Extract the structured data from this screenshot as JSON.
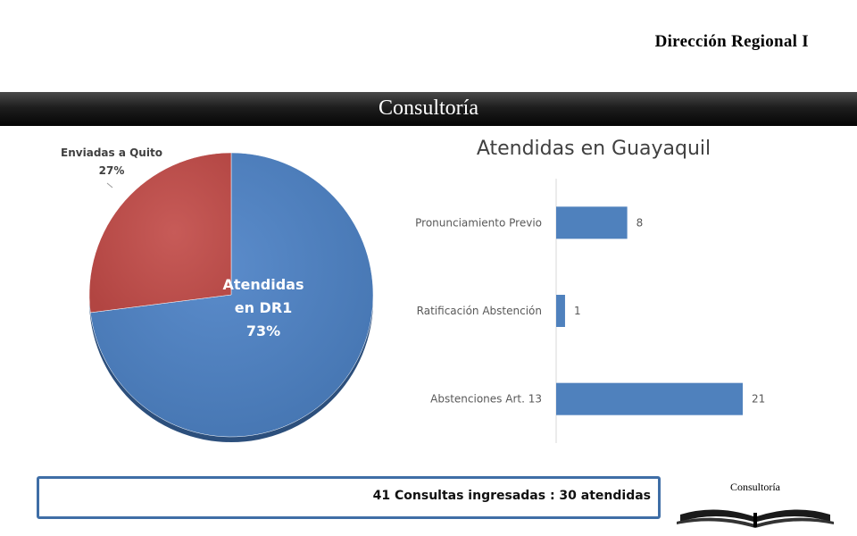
{
  "header": {
    "org_name": "Dirección Regional I"
  },
  "title_band": {
    "title": "Consultoría"
  },
  "summary": {
    "text": "41 Consultas ingresadas : 30 atendidas"
  },
  "logo": {
    "text": "Consultoría",
    "icon": "open-book-icon"
  },
  "colors": {
    "blue": "#4f81bd",
    "red": "#c0504d",
    "border": "#3f6ea6"
  },
  "chart_data": [
    {
      "type": "pie",
      "slices": [
        {
          "label_lines": [
            "Atendidas",
            "en DR1"
          ],
          "pct_label": "73%",
          "value": 73,
          "color": "#4f81bd"
        },
        {
          "label_lines": [
            "Enviadas a Quito"
          ],
          "pct_label": "27%",
          "value": 27,
          "color": "#c0504d"
        }
      ]
    },
    {
      "type": "bar",
      "orientation": "horizontal",
      "title": "Atendidas en Guayaquil",
      "categories": [
        "Pronunciamiento Previo",
        "Ratificación Abstención",
        "Abstenciones Art. 13"
      ],
      "values": [
        8,
        1,
        21
      ],
      "xlim": [
        0,
        21
      ],
      "color": "#4f81bd",
      "grid": false
    }
  ]
}
